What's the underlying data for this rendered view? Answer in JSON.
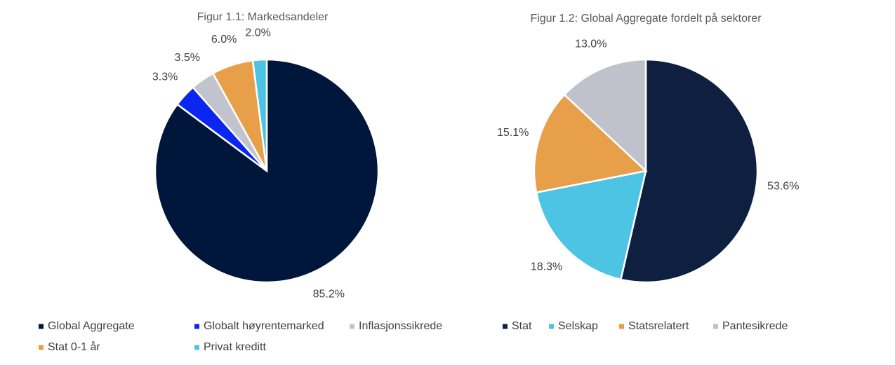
{
  "chart_data": [
    {
      "type": "pie",
      "title": "Figur 1.1: Markedsandeler",
      "categories": [
        "Global Aggregate",
        "Globalt høyrentemarked",
        "Inflasjonssikrede",
        "Stat 0-1 år",
        "Privat kreditt"
      ],
      "values": [
        85.2,
        3.3,
        3.5,
        6.0,
        2.0
      ],
      "value_labels": [
        "85.2%",
        "3.3%",
        "3.5%",
        "6.0%",
        "2.0%"
      ],
      "colors": [
        "#01163b",
        "#0a26f0",
        "#c1c4cc",
        "#e89f4a",
        "#4cc3e3"
      ],
      "legend": "bottom"
    },
    {
      "type": "pie",
      "title": "Figur 1.2: Global Aggregate fordelt på sektorer",
      "categories": [
        "Stat",
        "Selskap",
        "Statsrelatert",
        "Pantesikrede"
      ],
      "values": [
        53.6,
        18.3,
        15.1,
        13.0
      ],
      "value_labels": [
        "53.6%",
        "18.3%",
        "15.1%",
        "13.0%"
      ],
      "colors": [
        "#0f1f40",
        "#4dc4e3",
        "#e89f4a",
        "#bfc2ca"
      ],
      "legend": "bottom"
    }
  ]
}
